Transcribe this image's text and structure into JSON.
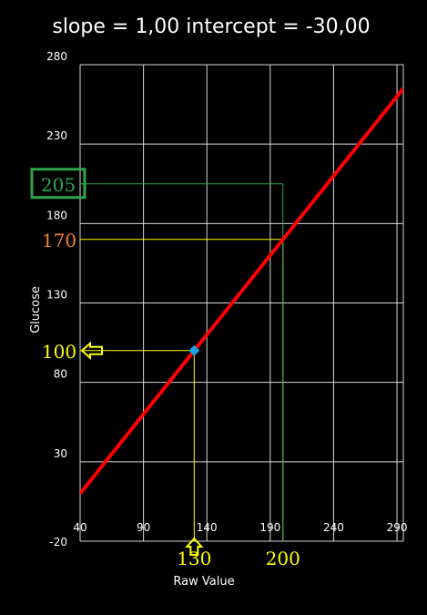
{
  "title": "slope = 1,00 intercept = -30,00",
  "chart_data": {
    "type": "scatter",
    "title": "slope = 1,00 intercept = -30,00",
    "xlabel": "Raw Value",
    "ylabel": "Glucose",
    "xlim": [
      40,
      295
    ],
    "ylim": [
      -20,
      280
    ],
    "x_ticks": [
      {
        "value": 40,
        "label": "40"
      },
      {
        "value": 90,
        "label": "90"
      },
      {
        "value": 140,
        "label": "140"
      },
      {
        "value": 190,
        "label": "190"
      },
      {
        "value": 240,
        "label": "240"
      },
      {
        "value": 290,
        "label": "290"
      }
    ],
    "y_ticks": [
      {
        "value": -20,
        "label": "-20"
      },
      {
        "value": 30,
        "label": "30"
      },
      {
        "value": 80,
        "label": "80"
      },
      {
        "value": 130,
        "label": "130"
      },
      {
        "value": 180,
        "label": "180"
      },
      {
        "value": 230,
        "label": "230"
      },
      {
        "value": 280,
        "label": "280"
      }
    ],
    "grid": true,
    "regression_line": {
      "slope": 1.0,
      "intercept": -30.0,
      "x_range": [
        40,
        295
      ],
      "color": "#ff0000"
    },
    "points": [
      {
        "x": 130,
        "y": 100,
        "color": "#1ba1e2"
      }
    ],
    "annotations": [
      {
        "x": 130,
        "y": 100,
        "x_label": "130",
        "y_label": "100",
        "color": "#ffff00",
        "arrows": true
      },
      {
        "x": 200,
        "y": 170,
        "x_label": "200",
        "y_label": "170",
        "color": "#ffff00",
        "y_label_color": "#f08030"
      },
      {
        "x": 200,
        "y": 205,
        "y_label": "205",
        "color": "#2ea44f",
        "boxed": true
      }
    ]
  }
}
